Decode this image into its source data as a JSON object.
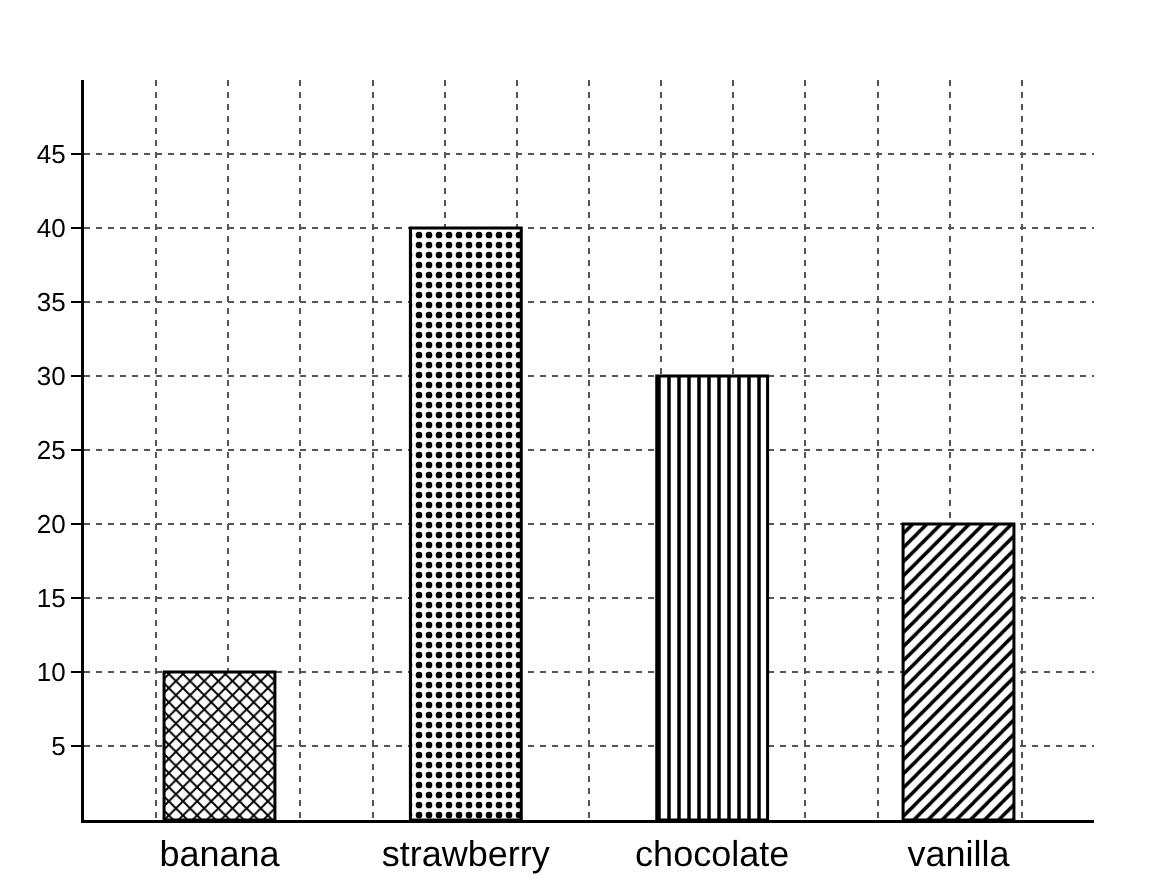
{
  "chart_data": {
    "type": "bar",
    "categories": [
      "banana",
      "strawberry",
      "chocolate",
      "vanilla"
    ],
    "values": [
      10,
      40,
      30,
      20
    ],
    "ylim": [
      0,
      50
    ],
    "yticks": [
      5,
      10,
      15,
      20,
      25,
      30,
      35,
      40,
      45
    ],
    "grid": true
  }
}
